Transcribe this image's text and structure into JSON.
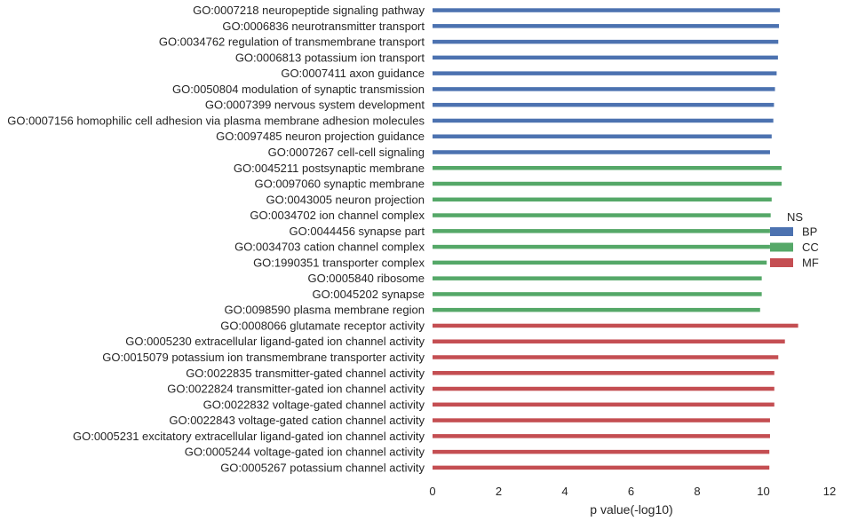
{
  "chart_data": {
    "type": "bar",
    "orientation": "horizontal",
    "xlabel": "p value(-log10)",
    "xlim": [
      0,
      12
    ],
    "xticks": [
      0,
      2,
      4,
      6,
      8,
      10,
      12
    ],
    "grid": false,
    "legend": {
      "title": "NS",
      "placement": "center-right",
      "entries": [
        {
          "name": "BP",
          "color": "#4c72b0"
        },
        {
          "name": "CC",
          "color": "#55a868"
        },
        {
          "name": "MF",
          "color": "#c44e52"
        }
      ]
    },
    "categories": [
      "GO:0007218 neuropeptide signaling pathway",
      "GO:0006836 neurotransmitter transport",
      "GO:0034762 regulation of transmembrane transport",
      "GO:0006813 potassium ion transport",
      "GO:0007411 axon guidance",
      "GO:0050804 modulation of synaptic transmission",
      "GO:0007399 nervous system development",
      "GO:0007156 homophilic cell adhesion via plasma membrane adhesion molecules",
      "GO:0097485 neuron projection guidance",
      "GO:0007267 cell-cell signaling",
      "GO:0045211 postsynaptic membrane",
      "GO:0097060 synaptic membrane",
      "GO:0043005 neuron projection",
      "GO:0034702 ion channel complex",
      "GO:0044456 synapse part",
      "GO:0034703 cation channel complex",
      "GO:1990351 transporter complex",
      "GO:0005840 ribosome",
      "GO:0045202 synapse",
      "GO:0098590 plasma membrane region",
      "GO:0008066 glutamate receptor activity",
      "GO:0005230 extracellular ligand-gated ion channel activity",
      "GO:0015079 potassium ion transmembrane transporter activity",
      "GO:0022835 transmitter-gated channel activity",
      "GO:0022824 transmitter-gated ion channel activity",
      "GO:0022832 voltage-gated channel activity",
      "GO:0022843 voltage-gated cation channel activity",
      "GO:0005231 excitatory extracellular ligand-gated ion channel activity",
      "GO:0005244 voltage-gated ion channel activity",
      "GO:0005267 potassium channel activity"
    ],
    "values": [
      10.5,
      10.47,
      10.45,
      10.44,
      10.4,
      10.35,
      10.32,
      10.3,
      10.25,
      10.2,
      10.55,
      10.55,
      10.25,
      10.22,
      10.2,
      10.2,
      10.1,
      9.95,
      9.95,
      9.9,
      11.05,
      10.65,
      10.45,
      10.33,
      10.33,
      10.33,
      10.2,
      10.2,
      10.18,
      10.18
    ],
    "groups": [
      "BP",
      "BP",
      "BP",
      "BP",
      "BP",
      "BP",
      "BP",
      "BP",
      "BP",
      "BP",
      "CC",
      "CC",
      "CC",
      "CC",
      "CC",
      "CC",
      "CC",
      "CC",
      "CC",
      "CC",
      "MF",
      "MF",
      "MF",
      "MF",
      "MF",
      "MF",
      "MF",
      "MF",
      "MF",
      "MF"
    ]
  }
}
